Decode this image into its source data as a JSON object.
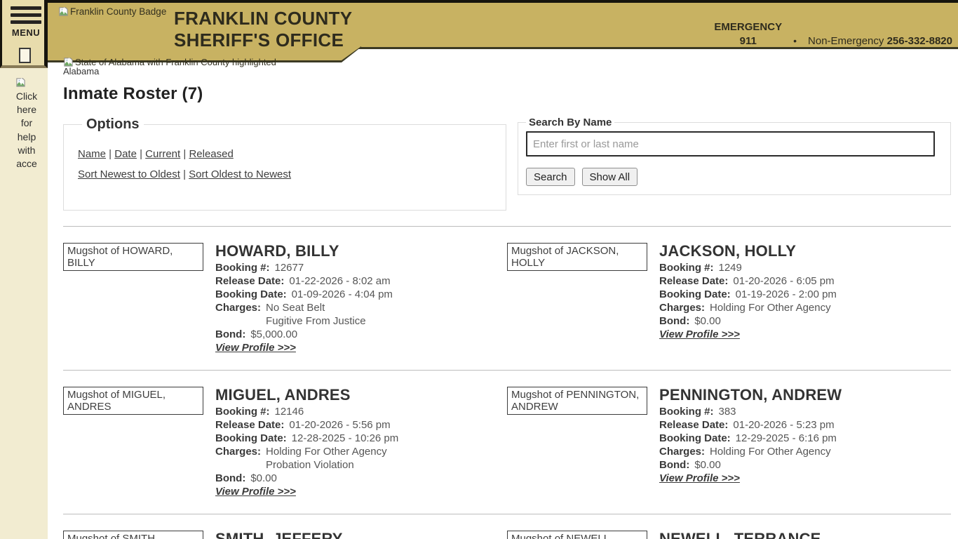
{
  "colors": {
    "header_gold": "#c8b262",
    "header_border_dark": "#3c3a24",
    "top_strip": "#16140d",
    "sidebar_top": "#e8dcac",
    "sidebar": "#f2ecd1"
  },
  "header": {
    "badge_alt": "Franklin County Badge",
    "title_line1": "FRANKLIN COUNTY",
    "title_line2": "SHERIFF'S OFFICE",
    "emergency_label": "EMERGENCY",
    "emergency_number": "911",
    "separator": "•",
    "non_emergency_label": "Non-Emergency",
    "non_emergency_number": "256-332-8820"
  },
  "sidebar": {
    "menu_label": "MENU",
    "help_text": "Click here for help with acce"
  },
  "page": {
    "state_image_alt": "State of Alabama with Franklin County highlighted",
    "state_caption": "Alabama",
    "title": "Inmate Roster (7)"
  },
  "options": {
    "legend": "Options",
    "filters": [
      "Name",
      "Date",
      "Current",
      "Released"
    ],
    "sorts": [
      "Sort Newest to Oldest",
      "Sort Oldest to Newest"
    ]
  },
  "search": {
    "legend": "Search By Name",
    "placeholder": "Enter first or last name",
    "value": "",
    "search_button": "Search",
    "show_all_button": "Show All"
  },
  "labels": {
    "booking_no": "Booking #:",
    "release_date": "Release Date:",
    "booking_date": "Booking Date:",
    "charges": "Charges:",
    "bond": "Bond:",
    "view_profile": "View Profile >>>"
  },
  "inmates": [
    {
      "name": "HOWARD, BILLY",
      "mugshot_alt": "Mugshot of HOWARD, BILLY",
      "booking_no": "12677",
      "release_date": "01-22-2026 - 8:02 am",
      "booking_date": "01-09-2026 - 4:04 pm",
      "charges": [
        "No Seat Belt",
        "Fugitive From Justice"
      ],
      "bond": "$5,000.00"
    },
    {
      "name": "JACKSON, HOLLY",
      "mugshot_alt": "Mugshot of JACKSON, HOLLY",
      "booking_no": "1249",
      "release_date": "01-20-2026 - 6:05 pm",
      "booking_date": "01-19-2026 - 2:00 pm",
      "charges": [
        "Holding For Other Agency"
      ],
      "bond": "$0.00"
    },
    {
      "name": "MIGUEL, ANDRES",
      "mugshot_alt": "Mugshot of MIGUEL, ANDRES",
      "booking_no": "12146",
      "release_date": "01-20-2026 - 5:56 pm",
      "booking_date": "12-28-2025 - 10:26 pm",
      "charges": [
        "Holding For Other Agency",
        "Probation Violation"
      ],
      "bond": "$0.00"
    },
    {
      "name": "PENNINGTON, ANDREW",
      "mugshot_alt": "Mugshot of PENNINGTON, ANDREW",
      "booking_no": "383",
      "release_date": "01-20-2026 - 5:23 pm",
      "booking_date": "12-29-2025 - 6:16 pm",
      "charges": [
        "Holding For Other Agency"
      ],
      "bond": "$0.00"
    },
    {
      "name": "SMITH, JEFFERY",
      "mugshot_alt": "Mugshot of SMITH, JEFFERY"
    },
    {
      "name": "NEWELL, TERRANCE",
      "mugshot_alt": "Mugshot of NEWELL, TERRANCE"
    }
  ]
}
